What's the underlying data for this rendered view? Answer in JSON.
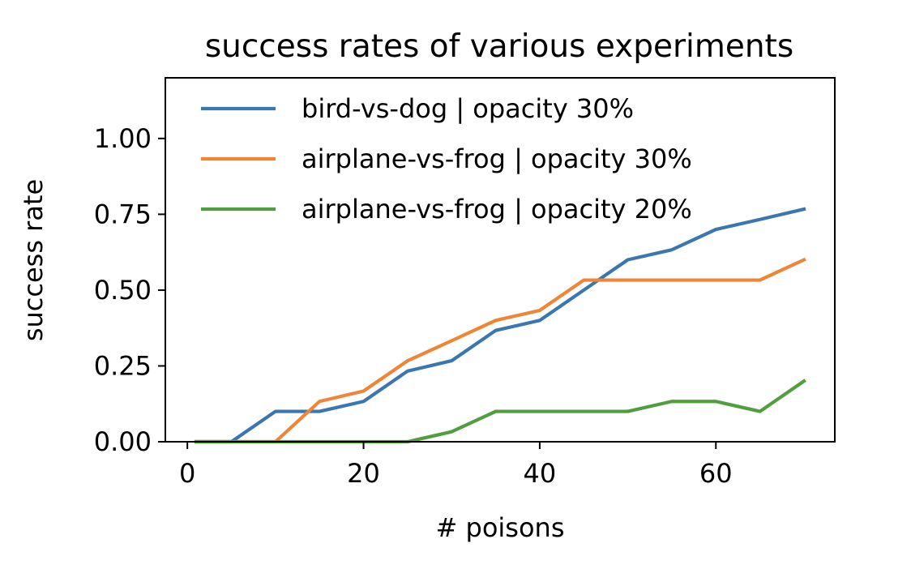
{
  "chart_data": {
    "type": "line",
    "title": "success rates of various experiments",
    "xlabel": "# poisons",
    "ylabel": "success rate",
    "xlim": [
      -2.5,
      73.5
    ],
    "ylim": [
      0,
      1.2
    ],
    "xticks": [
      0,
      20,
      40,
      60
    ],
    "xtick_labels": [
      "0",
      "20",
      "40",
      "60"
    ],
    "yticks": [
      0,
      0.25,
      0.5,
      0.75,
      1.0
    ],
    "ytick_labels": [
      "0.00",
      "0.25",
      "0.50",
      "0.75",
      "1.00"
    ],
    "grid": false,
    "legend_position": "top-right",
    "series": [
      {
        "name": "bird-vs-dog | opacity 30%",
        "color": "#3a76af",
        "x": [
          1,
          5,
          10,
          15,
          20,
          25,
          30,
          35,
          40,
          45,
          50,
          55,
          60,
          65,
          70
        ],
        "y": [
          0,
          0,
          0.1,
          0.1,
          0.133,
          0.233,
          0.267,
          0.367,
          0.4,
          0.5,
          0.6,
          0.633,
          0.7,
          0.733,
          0.767
        ]
      },
      {
        "name": "airplane-vs-frog | opacity 30%",
        "color": "#ef8536",
        "x": [
          1,
          5,
          10,
          15,
          20,
          25,
          30,
          35,
          40,
          45,
          50,
          55,
          60,
          65,
          70
        ],
        "y": [
          0,
          0,
          0,
          0.133,
          0.167,
          0.267,
          0.333,
          0.4,
          0.433,
          0.533,
          0.533,
          0.533,
          0.533,
          0.533,
          0.6
        ]
      },
      {
        "name": "airplane-vs-frog | opacity 20%",
        "color": "#519e3e",
        "x": [
          1,
          5,
          10,
          15,
          20,
          25,
          30,
          35,
          40,
          45,
          50,
          55,
          60,
          65,
          70
        ],
        "y": [
          0,
          0,
          0,
          0,
          0,
          0,
          0.033,
          0.1,
          0.1,
          0.1,
          0.1,
          0.133,
          0.133,
          0.1,
          0.2
        ]
      }
    ]
  }
}
